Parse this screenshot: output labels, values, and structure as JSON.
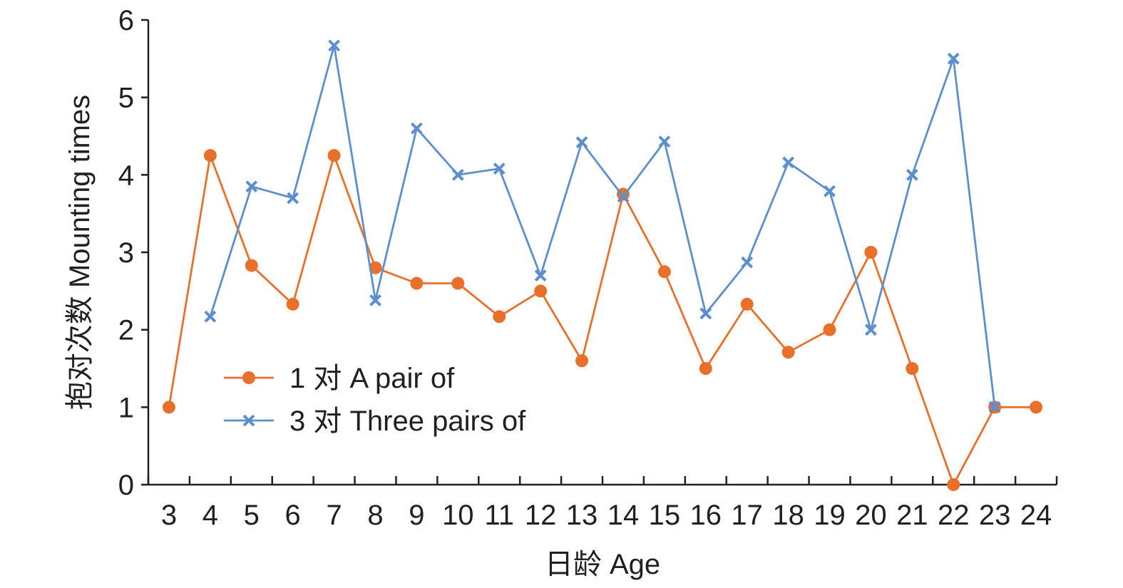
{
  "chart_data": {
    "type": "line",
    "title": "",
    "xlabel": "日龄 Age",
    "ylabel": "抱对次数 Mounting times",
    "categories": [
      "3",
      "4",
      "5",
      "6",
      "7",
      "8",
      "9",
      "10",
      "11",
      "12",
      "13",
      "14",
      "15",
      "16",
      "17",
      "18",
      "19",
      "20",
      "21",
      "22",
      "23",
      "24"
    ],
    "ylim": [
      0,
      6
    ],
    "yticks": [
      0,
      1,
      2,
      3,
      4,
      5,
      6
    ],
    "grid": false,
    "legend_position": "center-left",
    "series": [
      {
        "name": "1 对 A pair of",
        "color": "#e8702a",
        "marker": "circle",
        "values": [
          1,
          4.25,
          2.83,
          2.33,
          4.25,
          2.8,
          2.6,
          2.6,
          2.17,
          2.5,
          1.6,
          3.75,
          2.75,
          1.5,
          2.33,
          1.71,
          2.0,
          3.0,
          1.5,
          0,
          1,
          1
        ]
      },
      {
        "name": "3 对 Three pairs of",
        "color": "#5b8fcd",
        "marker": "x",
        "values": [
          null,
          2.17,
          3.85,
          3.7,
          5.67,
          2.38,
          4.6,
          4.0,
          4.08,
          2.7,
          4.42,
          3.72,
          4.43,
          2.21,
          2.87,
          4.16,
          3.79,
          2.0,
          4.0,
          5.5,
          1,
          null
        ]
      }
    ]
  }
}
